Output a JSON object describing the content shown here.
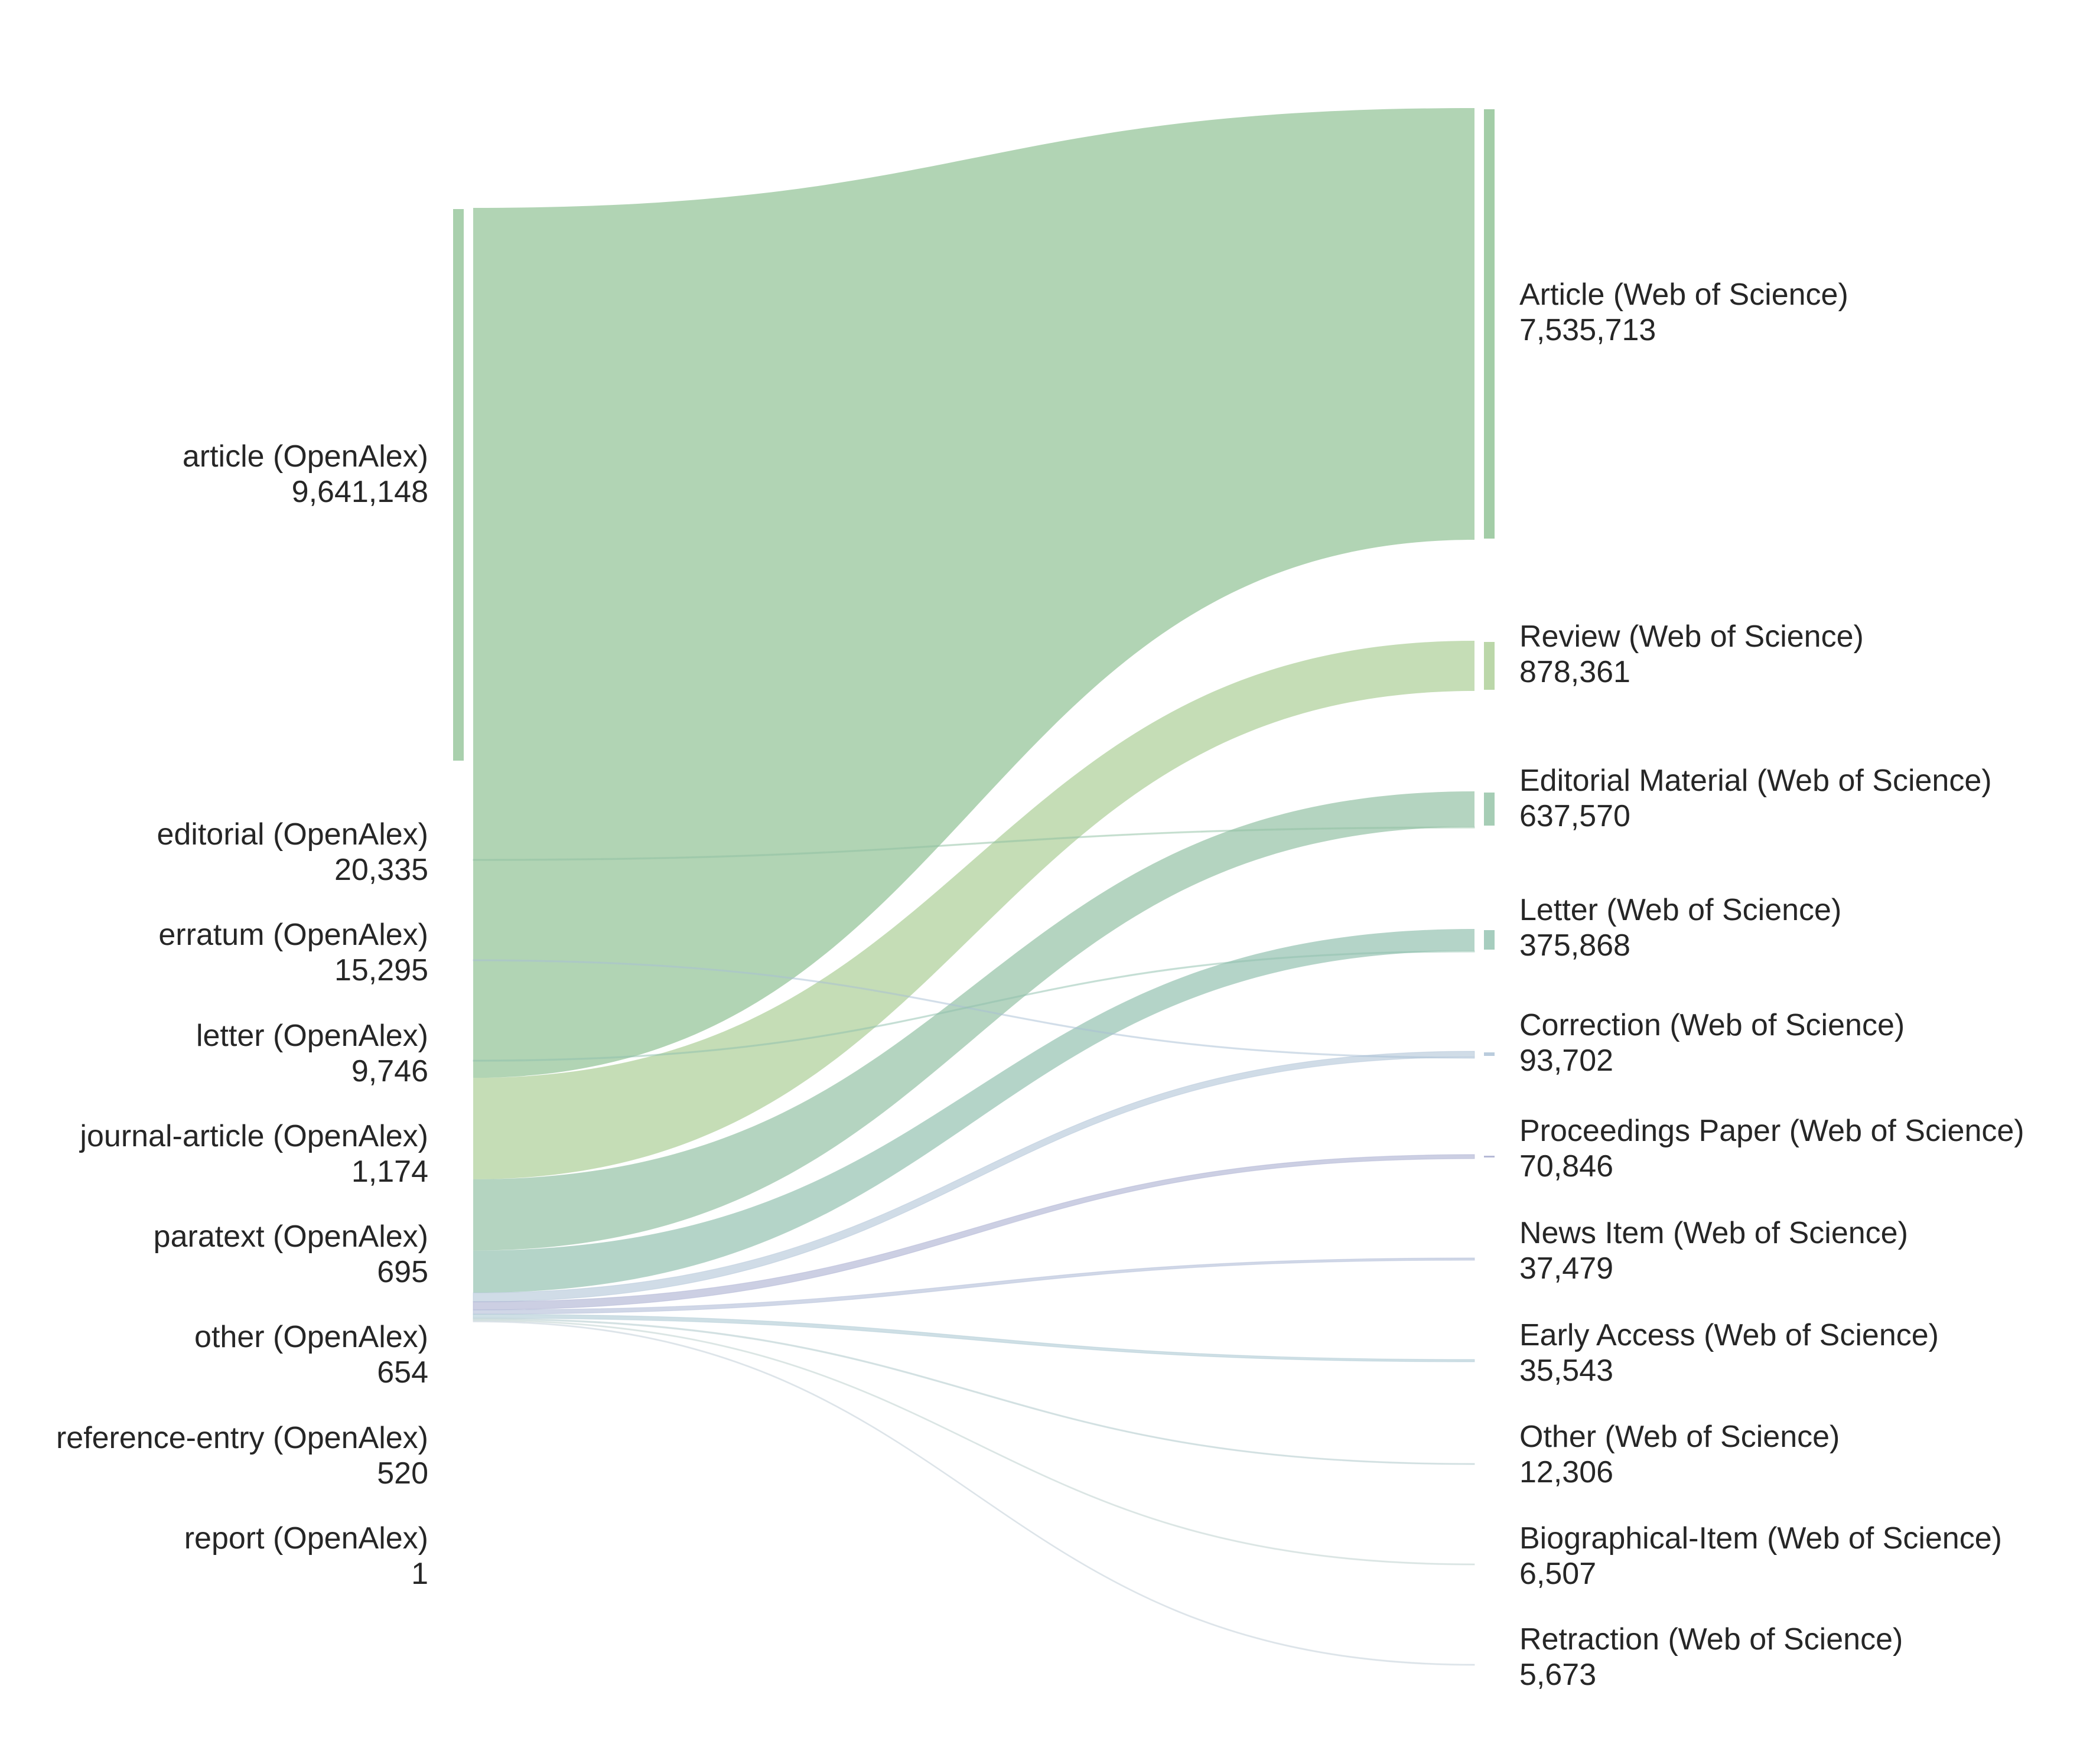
{
  "diagram": {
    "type": "sankey",
    "sources": [
      {
        "name": "article (OpenAlex)",
        "value": "9,641,148",
        "color": "#8cc091"
      },
      {
        "name": "editorial (OpenAlex)",
        "value": "20,335",
        "color": "#8cc091"
      },
      {
        "name": "erratum (OpenAlex)",
        "value": "15,295",
        "color": "#bfc6d8"
      },
      {
        "name": "letter (OpenAlex)",
        "value": "9,746",
        "color": "#bfc6d8"
      },
      {
        "name": "journal-article (OpenAlex)",
        "value": "1,174",
        "color": "#bfc6d8"
      },
      {
        "name": "paratext (OpenAlex)",
        "value": "695",
        "color": "#bfc6d8"
      },
      {
        "name": "other (OpenAlex)",
        "value": "654",
        "color": "#bfc6d8"
      },
      {
        "name": "reference-entry (OpenAlex)",
        "value": "520",
        "color": "#bfc6d8"
      },
      {
        "name": "report (OpenAlex)",
        "value": "1",
        "color": "#bfc6d8"
      }
    ],
    "targets": [
      {
        "name": "Article (Web of Science)",
        "value": "7,535,713",
        "color": "#8cc091"
      },
      {
        "name": "Review (Web of Science)",
        "value": "878,361",
        "color": "#aacd94"
      },
      {
        "name": "Editorial Material (Web of Science)",
        "value": "637,570",
        "color": "#90c0a2"
      },
      {
        "name": "Letter (Web of Science)",
        "value": "375,868",
        "color": "#90c0ae"
      },
      {
        "name": "Correction (Web of Science)",
        "value": "93,702",
        "color": "#a9bfd4"
      },
      {
        "name": "Proceedings Paper (Web of Science)",
        "value": "70,846",
        "color": "#a3a7cc"
      },
      {
        "name": "News Item (Web of Science)",
        "value": "37,479",
        "color": "#a9b6d4"
      },
      {
        "name": "Early Access (Web of Science)",
        "value": "35,543",
        "color": "#a6c4cf"
      },
      {
        "name": "Other (Web of Science)",
        "value": "12,306",
        "color": "#b7cdd0"
      },
      {
        "name": "Biographical-Item (Web of Science)",
        "value": "6,507",
        "color": "#c5d6d4"
      },
      {
        "name": "Retraction (Web of Science)",
        "value": "5,673",
        "color": "#c9d4dc"
      }
    ],
    "flows": [
      {
        "source": 0,
        "target": 0,
        "value": 7535713
      },
      {
        "source": 0,
        "target": 1,
        "value": 878361
      },
      {
        "source": 0,
        "target": 2,
        "value": 617000
      },
      {
        "source": 0,
        "target": 3,
        "value": 366000
      },
      {
        "source": 0,
        "target": 4,
        "value": 78000
      },
      {
        "source": 0,
        "target": 5,
        "value": 70000
      },
      {
        "source": 0,
        "target": 6,
        "value": 37000
      },
      {
        "source": 0,
        "target": 7,
        "value": 35000
      },
      {
        "source": 0,
        "target": 8,
        "value": 12000
      },
      {
        "source": 0,
        "target": 9,
        "value": 6500
      },
      {
        "source": 0,
        "target": 10,
        "value": 5600
      },
      {
        "source": 1,
        "target": 2,
        "value": 20335
      },
      {
        "source": 2,
        "target": 4,
        "value": 15295
      },
      {
        "source": 3,
        "target": 3,
        "value": 9746
      }
    ]
  }
}
